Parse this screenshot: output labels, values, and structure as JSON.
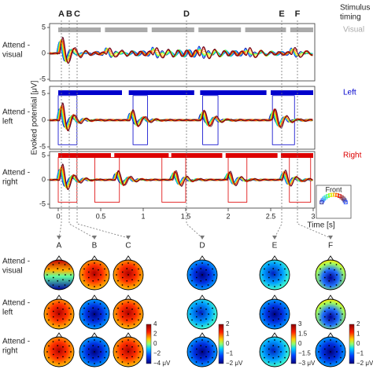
{
  "figure": {
    "time_letters": [
      "A",
      "B",
      "C",
      "D",
      "E",
      "F"
    ],
    "stimulus_timing": [
      "Stimulus",
      "timing"
    ],
    "rows": [
      [
        "Attend -",
        "visual"
      ],
      [
        "Attend -",
        "left"
      ],
      [
        "Attend -",
        "right"
      ]
    ],
    "streams": [
      "Visual",
      "Left",
      "Right"
    ],
    "y_axis_label": "Evoked potential [μV]",
    "y_ticks": [
      "5",
      "0",
      "-5"
    ],
    "x_ticks": [
      "0",
      "0.5",
      "1",
      "1.5",
      "2",
      "2.5",
      "3"
    ],
    "x_axis_label": "Time [s]",
    "inset_label": "Front",
    "colorbars": [
      {
        "ticks": [
          "4",
          "2",
          "0",
          "−2",
          "−4 μV"
        ]
      },
      {
        "ticks": [
          "2",
          "1",
          "0",
          "−1",
          "−2 μV"
        ]
      },
      {
        "ticks": [
          "3",
          "1.5",
          "0",
          "−1.5",
          "−3 μV"
        ]
      },
      {
        "ticks": [
          "2",
          "1",
          "0",
          "−1",
          "−2 μV"
        ]
      }
    ]
  }
}
